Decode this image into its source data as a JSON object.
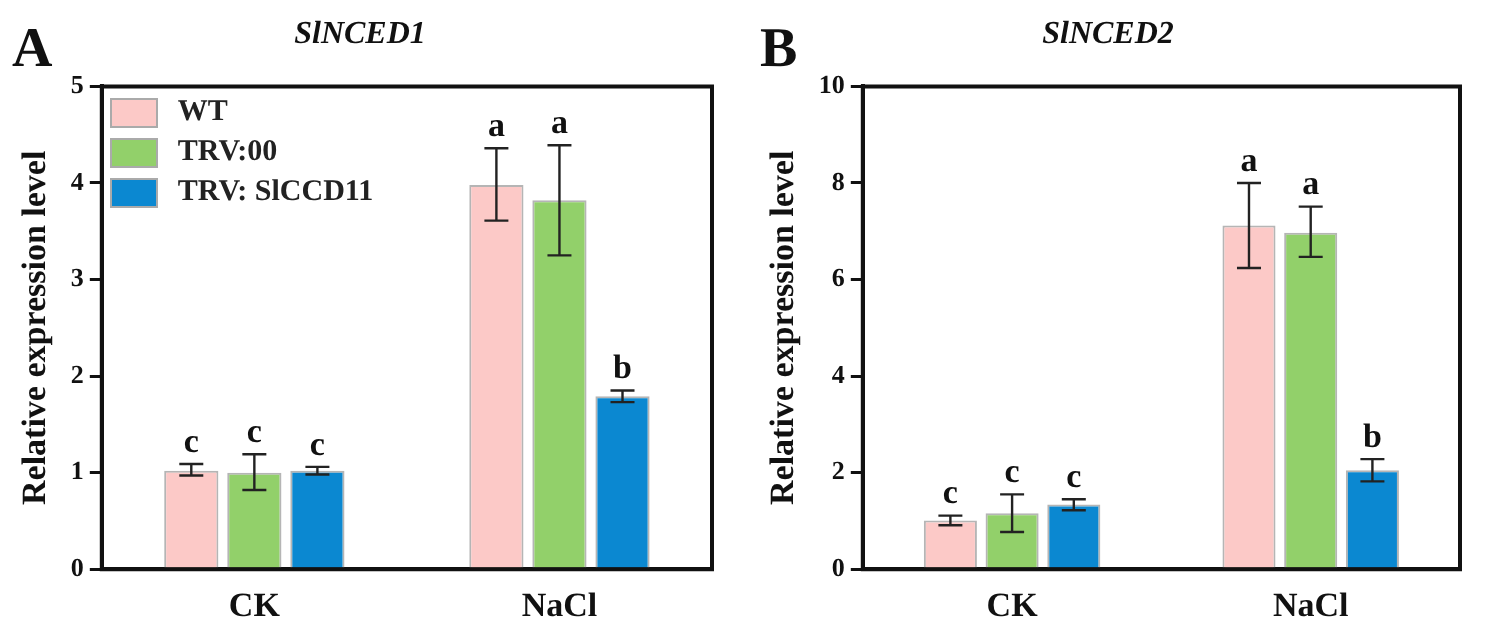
{
  "chart_data": [
    {
      "type": "bar",
      "title": "SlNCED1",
      "ylabel": "Relative expression level",
      "annotations": [
        "A"
      ],
      "categories": [
        "CK",
        "NaCl"
      ],
      "ylim": [
        0,
        5
      ],
      "yticks": [
        0,
        1,
        2,
        3,
        4,
        5
      ],
      "grid": false,
      "legend": "top left",
      "series": [
        {
          "name": "WT",
          "color": "#fcc9c7",
          "values": [
            1.02,
            3.98
          ],
          "errors": [
            [
              0.97,
              1.09
            ],
            [
              3.61,
              4.36
            ]
          ],
          "value_labels": [
            "c",
            "a"
          ]
        },
        {
          "name": "TRV:00",
          "color": "#92d06a",
          "values": [
            1.0,
            3.82
          ],
          "errors": [
            [
              0.82,
              1.19
            ],
            [
              3.25,
              4.39
            ]
          ],
          "value_labels": [
            "c",
            "a"
          ]
        },
        {
          "name": "TRV: SlCCD11",
          "color": "#0b88d1",
          "values": [
            1.02,
            1.79
          ],
          "errors": [
            [
              0.98,
              1.06
            ],
            [
              1.73,
              1.85
            ]
          ],
          "value_labels": [
            "c",
            "b"
          ]
        }
      ]
    },
    {
      "type": "bar",
      "title": "SlNCED2",
      "ylabel": "Relative expression level",
      "annotations": [
        "B"
      ],
      "categories": [
        "CK",
        "NaCl"
      ],
      "ylim": [
        0,
        10
      ],
      "yticks": [
        0,
        2,
        4,
        6,
        8,
        10
      ],
      "grid": false,
      "legend": false,
      "series": [
        {
          "color": "#fcc9c7",
          "values": [
            1.01,
            7.12
          ],
          "errors": [
            [
              0.91,
              1.11
            ],
            [
              6.24,
              8.0
            ]
          ],
          "value_labels": [
            "c",
            "a"
          ]
        },
        {
          "color": "#92d06a",
          "values": [
            1.16,
            6.97
          ],
          "errors": [
            [
              0.77,
              1.55
            ],
            [
              6.47,
              7.51
            ]
          ],
          "value_labels": [
            "c",
            "a"
          ]
        },
        {
          "color": "#0b88d1",
          "values": [
            1.34,
            2.05
          ],
          "errors": [
            [
              1.22,
              1.45
            ],
            [
              1.82,
              2.28
            ]
          ],
          "value_labels": [
            "c",
            "b"
          ]
        }
      ]
    }
  ]
}
